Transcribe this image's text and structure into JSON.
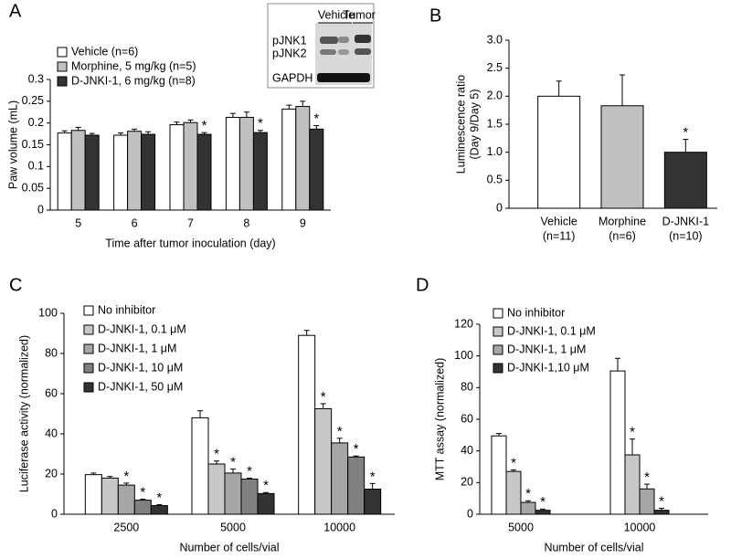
{
  "chart_data": [
    {
      "type": "bar",
      "panel_label": "A",
      "x_label": "Time after tumor inoculation (day)",
      "y_label": "Paw volume (mL)",
      "categories": [
        "5",
        "6",
        "7",
        "8",
        "9"
      ],
      "ylim": [
        0,
        0.3
      ],
      "yticks": [
        0,
        0.05,
        0.1,
        0.15,
        0.2,
        0.25,
        0.3
      ],
      "series": [
        {
          "name": "Vehicle (n=6)",
          "color": "#ffffff",
          "values": [
            0.177,
            0.172,
            0.196,
            0.213,
            0.232
          ],
          "errors": [
            0.005,
            0.005,
            0.006,
            0.009,
            0.009
          ],
          "markers": [
            null,
            null,
            null,
            null,
            null
          ]
        },
        {
          "name": "Morphine, 5 mg/kg (n=5)",
          "color": "#c0c0c0",
          "values": [
            0.183,
            0.181,
            0.201,
            0.213,
            0.238
          ],
          "errors": [
            0.007,
            0.005,
            0.006,
            0.012,
            0.012
          ],
          "markers": [
            null,
            null,
            null,
            null,
            null
          ]
        },
        {
          "name": "D-JNKI-1, 6 mg/kg (n=8)",
          "color": "#333333",
          "values": [
            0.172,
            0.174,
            0.174,
            0.178,
            0.186
          ],
          "errors": [
            0.004,
            0.006,
            0.004,
            0.005,
            0.008
          ],
          "markers": [
            null,
            null,
            "*",
            "*",
            "*"
          ]
        }
      ],
      "inset": {
        "columns": [
          "Vehicle",
          "Tumor"
        ],
        "rows": [
          "pJNK1",
          "pJNK2",
          "GAPDH"
        ]
      }
    },
    {
      "type": "bar",
      "panel_label": "B",
      "y_label": [
        "Luminescence ratio",
        "(Day 9/Day 5)"
      ],
      "categories": [
        "Vehicle",
        "Morphine",
        "D-JNKI-1"
      ],
      "category_notes": [
        "(n=11)",
        "(n=6)",
        "(n=10)"
      ],
      "ylim": [
        0,
        3
      ],
      "yticks": [
        0,
        0.5,
        {
          "value": 1,
          "label": "1.0"
        },
        1.5,
        {
          "value": 2,
          "label": "2.0"
        },
        2.5,
        {
          "value": 3,
          "label": "3.0"
        }
      ],
      "values": [
        2.0,
        1.83,
        1.0
      ],
      "colors": [
        "#ffffff",
        "#c0c0c0",
        "#333333"
      ],
      "errors": [
        0.27,
        0.55,
        0.23
      ],
      "markers": [
        null,
        null,
        "*"
      ]
    },
    {
      "type": "bar",
      "panel_label": "C",
      "x_label": "Number of cells/vial",
      "y_label": "Luciferase activity  (normalized)",
      "categories": [
        "2500",
        "5000",
        "10000"
      ],
      "ylim": [
        0,
        100
      ],
      "yticks": [
        0,
        20,
        40,
        60,
        80,
        100
      ],
      "series": [
        {
          "name": "No inhibitor",
          "color": "#ffffff",
          "values": [
            19.7,
            48,
            89
          ],
          "errors": [
            0.8,
            3.5,
            2.5
          ],
          "markers": [
            null,
            null,
            null
          ]
        },
        {
          "name": "D-JNKI-1, 0.1 μM",
          "color": "#c8c8c8",
          "values": [
            18,
            25,
            52.5
          ],
          "errors": [
            0.8,
            1.5,
            2.5
          ],
          "markers": [
            null,
            "*",
            "*"
          ]
        },
        {
          "name": "D-JNKI-1, 1 μM",
          "color": "#a6a6a6",
          "values": [
            14.5,
            20.5,
            35.5
          ],
          "errors": [
            1,
            2,
            2.3
          ],
          "markers": [
            "*",
            "*",
            "*"
          ]
        },
        {
          "name": "D-JNKI-1, 10 μM",
          "color": "#808080",
          "values": [
            7,
            17.5,
            28.5
          ],
          "errors": [
            0.5,
            0.5,
            0.5
          ],
          "markers": [
            "*",
            "*",
            "*"
          ]
        },
        {
          "name": "D-JNKI-1, 50 μM",
          "color": "#333333",
          "values": [
            4.3,
            10.3,
            12.5
          ],
          "errors": [
            0.5,
            0.5,
            2.8
          ],
          "markers": [
            "*",
            "*",
            "*"
          ]
        }
      ]
    },
    {
      "type": "bar",
      "panel_label": "D",
      "x_label": "Number of cells/vial",
      "y_label": "MTT assay (normalized)",
      "categories": [
        "5000",
        "10000"
      ],
      "ylim": [
        0,
        120
      ],
      "yticks": [
        0,
        20,
        40,
        60,
        80,
        100,
        120
      ],
      "series": [
        {
          "name": "No inhibitor",
          "color": "#ffffff",
          "values": [
            49.5,
            90.5
          ],
          "errors": [
            1.5,
            8
          ],
          "markers": [
            null,
            null
          ]
        },
        {
          "name": "D-JNKI-1, 0.1 μM",
          "color": "#c8c8c8",
          "values": [
            27,
            37.5
          ],
          "errors": [
            1,
            10
          ],
          "markers": [
            "*",
            "*"
          ]
        },
        {
          "name": "D-JNKI-1, 1 μM",
          "color": "#a6a6a6",
          "values": [
            7.5,
            16
          ],
          "errors": [
            1,
            3
          ],
          "markers": [
            "*",
            "*"
          ]
        },
        {
          "name": "D-JNKI-1,10 μM",
          "color": "#333333",
          "values": [
            2.5,
            2.5
          ],
          "errors": [
            0.8,
            1.3
          ],
          "markers": [
            "*",
            "*"
          ]
        }
      ]
    }
  ]
}
